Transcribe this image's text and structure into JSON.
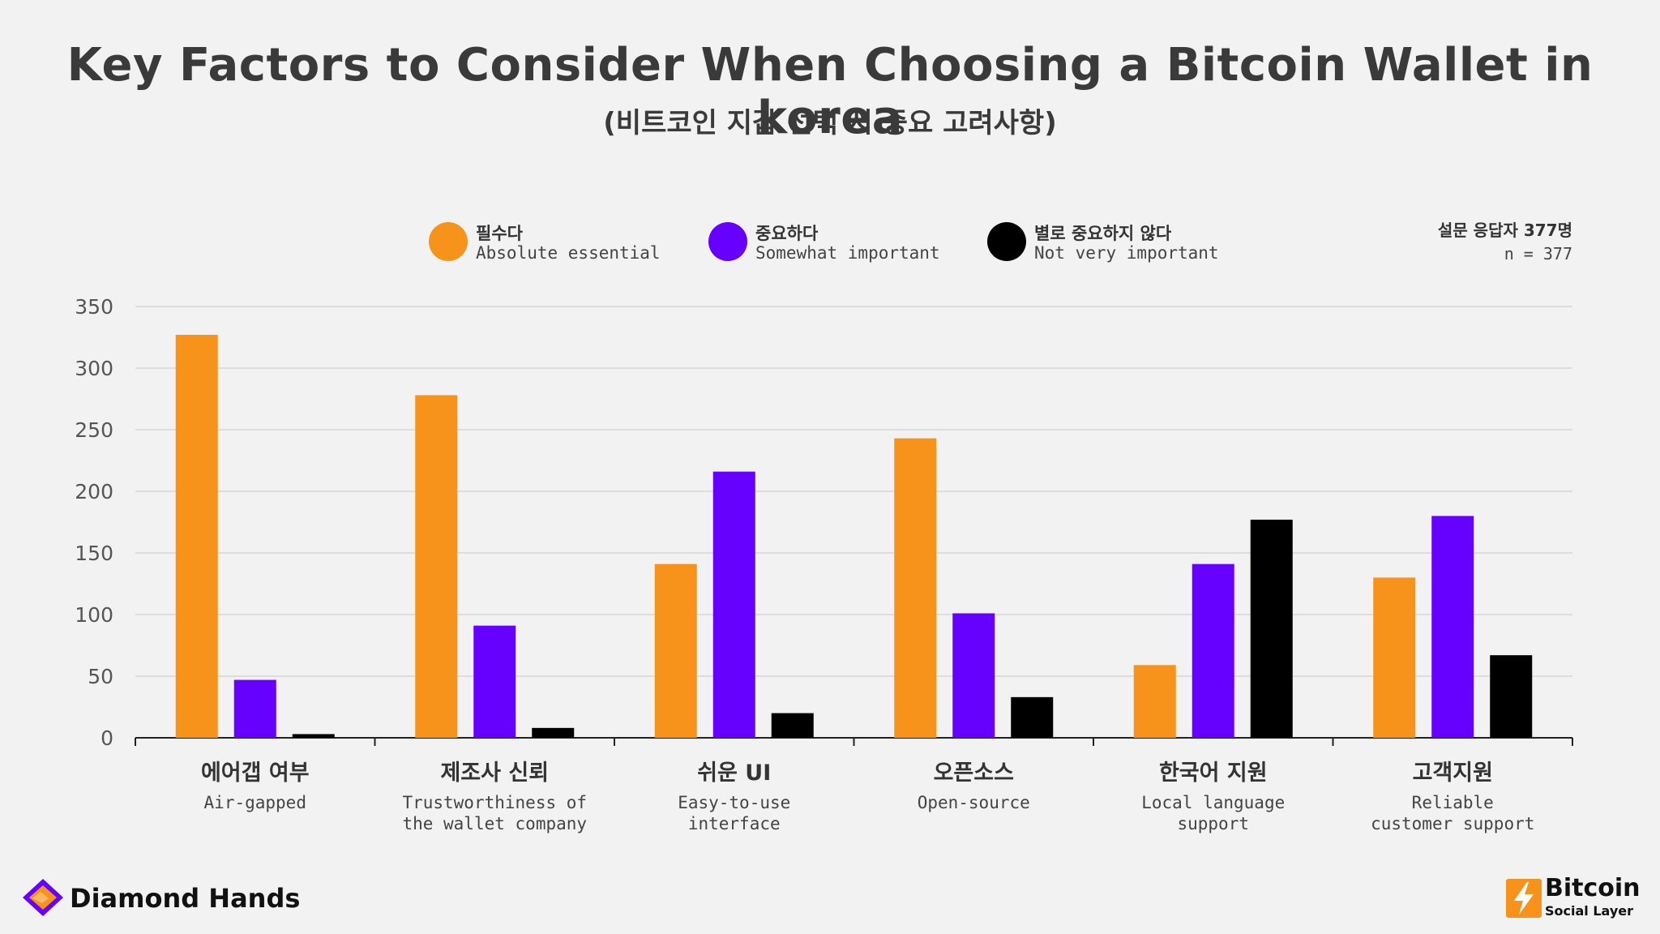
{
  "header": {
    "title": "Key Factors to Consider When Choosing a Bitcoin Wallet in korea",
    "subtitle": "(비트코인 지갑 선택 시 중요 고려사항)"
  },
  "legend": [
    {
      "ko": "필수다",
      "en": "Absolute essential",
      "color": "#f7931a"
    },
    {
      "ko": "중요하다",
      "en": "Somewhat important",
      "color": "#6600ff"
    },
    {
      "ko": "별로 중요하지 않다",
      "en": "Not very important",
      "color": "#000000"
    }
  ],
  "sample": {
    "ko": "설문 응답자 377명",
    "n": "n = 377"
  },
  "chart_data": {
    "type": "bar",
    "categories": [
      {
        "ko": "에어갭 여부",
        "en": [
          "Air-gapped"
        ]
      },
      {
        "ko": "제조사 신뢰",
        "en": [
          "Trustworthiness of",
          "the wallet company"
        ]
      },
      {
        "ko": "쉬운 UI",
        "en": [
          "Easy-to-use",
          "interface"
        ]
      },
      {
        "ko": "오픈소스",
        "en": [
          "Open-source"
        ]
      },
      {
        "ko": "한국어 지원",
        "en": [
          "Local language",
          "support"
        ]
      },
      {
        "ko": "고객지원",
        "en": [
          "Reliable",
          "customer support"
        ]
      }
    ],
    "series": [
      {
        "name": "필수다 Absolute essential",
        "color": "#f7931a",
        "values": [
          327,
          278,
          141,
          243,
          59,
          130
        ]
      },
      {
        "name": "중요하다 Somewhat important",
        "color": "#6600ff",
        "values": [
          47,
          91,
          216,
          101,
          141,
          180
        ]
      },
      {
        "name": "별로 중요하지 않다 Not very important",
        "color": "#000000",
        "values": [
          3,
          8,
          20,
          33,
          177,
          67
        ]
      }
    ],
    "ylim": [
      0,
      350
    ],
    "yticks": [
      0,
      50,
      100,
      150,
      200,
      250,
      300,
      350
    ],
    "grid": true
  },
  "brands": {
    "left": "Diamond Hands",
    "right_line1": "Bitcoin",
    "right_line2": "Social Layer"
  }
}
